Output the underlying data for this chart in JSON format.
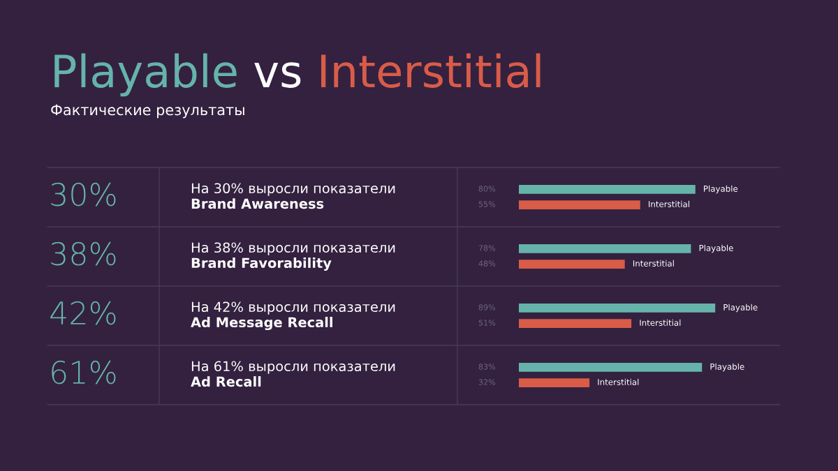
{
  "chart_data": {
    "type": "bar",
    "orientation": "horizontal",
    "title": "Playable vs Interstitial",
    "subtitle": "Фактические результаты",
    "categories": [
      "На 30% выросли показатели\nBrand Awareness",
      "На 38% выросли показатели\nBrand Favorability",
      "На 42% выросли показатели\nAd Message Recall",
      "На 61% выросли показатели\nAd Recall"
    ],
    "annotations": [
      "30%",
      "38%",
      "42%",
      "61%"
    ],
    "series": [
      {
        "name": "Playable",
        "color": "#66b3ab",
        "values": [
          80,
          78,
          89,
          83
        ],
        "value_labels": [
          "80%",
          "78%",
          "89%",
          "83%"
        ]
      },
      {
        "name": "Interstitial",
        "color": "#d95c49",
        "values": [
          55,
          48,
          51,
          32
        ],
        "value_labels": [
          "55%",
          "48%",
          "51%",
          "32%"
        ]
      }
    ]
  }
}
